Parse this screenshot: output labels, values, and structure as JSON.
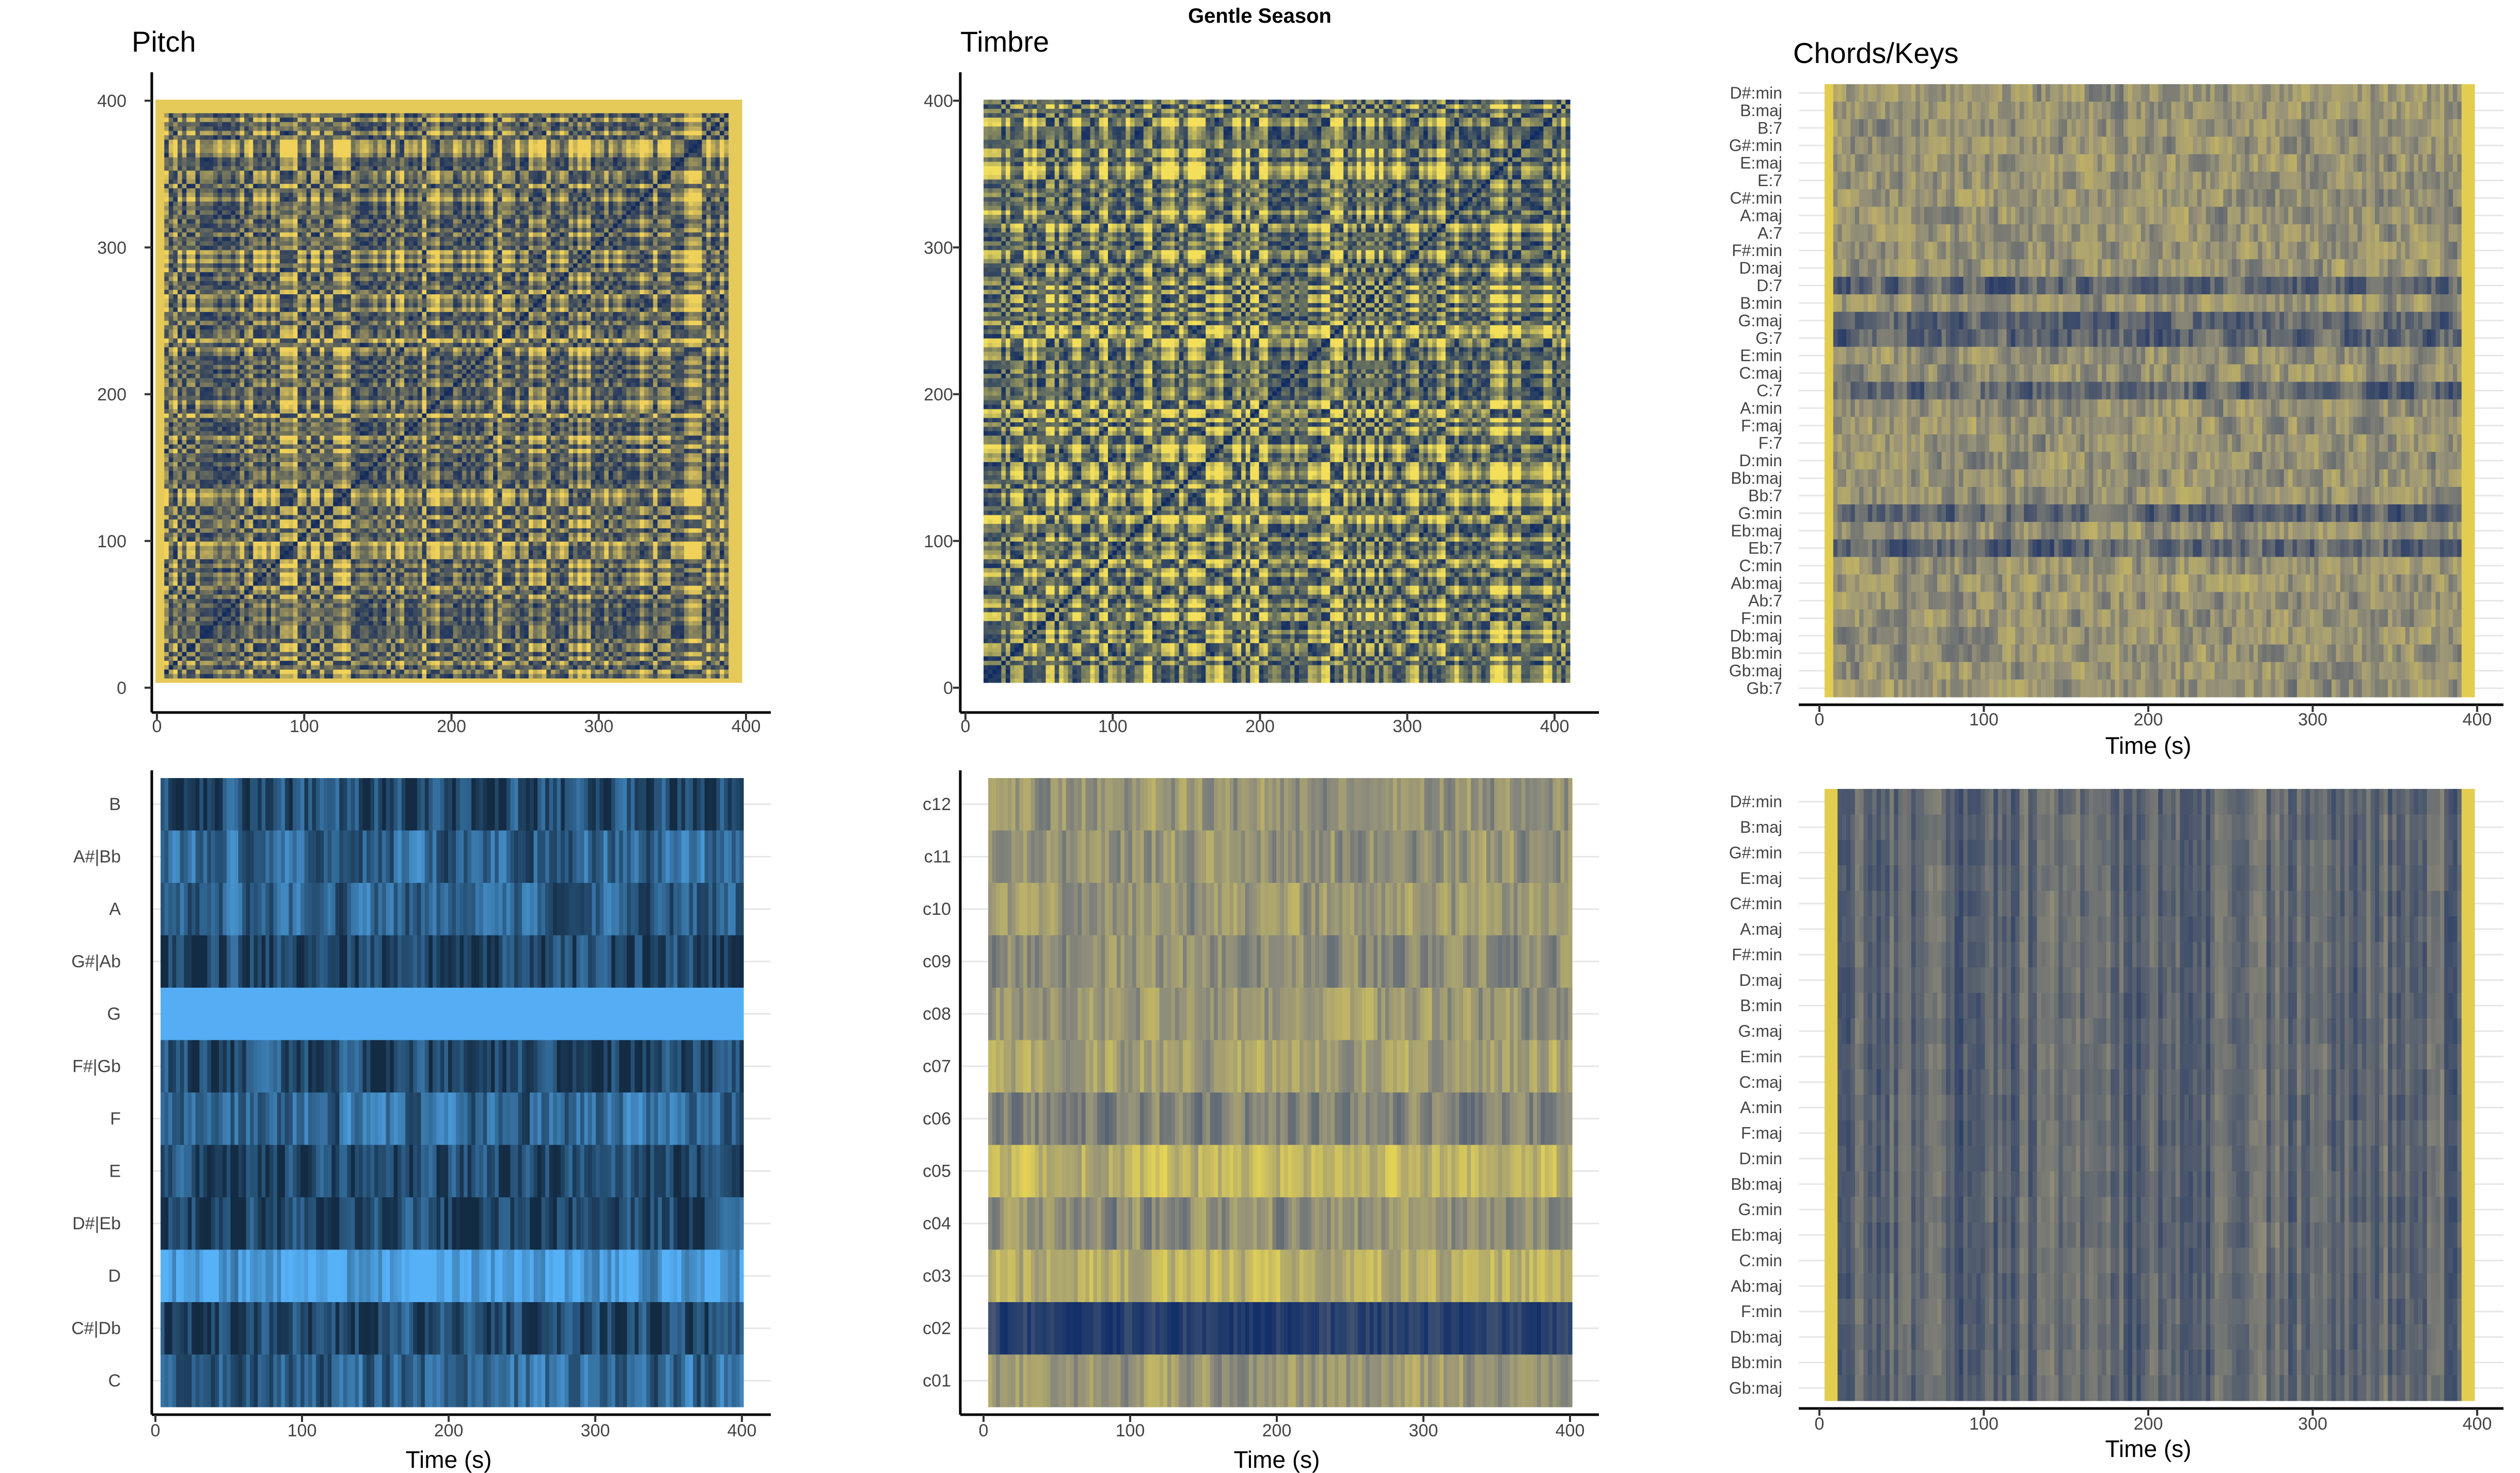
{
  "figure_title": "Gentle Season",
  "chart_data": [
    {
      "id": "pitch-ssm",
      "type": "heatmap",
      "title": "Pitch",
      "xlabel": "",
      "ylabel": "",
      "xlim": [
        0,
        400
      ],
      "ylim": [
        0,
        400
      ],
      "x_ticks": [
        0,
        100,
        200,
        300,
        400
      ],
      "y_ticks": [
        0,
        100,
        200,
        300,
        400
      ],
      "colors": [
        "#132b5e",
        "#f0d25a"
      ]
    },
    {
      "id": "timbre-ssm",
      "type": "heatmap",
      "title": "Timbre",
      "xlabel": "",
      "ylabel": "",
      "xlim": [
        0,
        400
      ],
      "ylim": [
        0,
        400
      ],
      "x_ticks": [
        0,
        100,
        200,
        300,
        400
      ],
      "y_ticks": [
        0,
        100,
        200,
        300,
        400
      ],
      "colors": [
        "#0f2b63",
        "#f3df5a"
      ]
    },
    {
      "id": "chordogram",
      "type": "heatmap",
      "title": "Chords/Keys",
      "xlabel": "Time (s)",
      "ylabel": "",
      "xlim": [
        0,
        400
      ],
      "x_ticks": [
        0,
        100,
        200,
        300,
        400
      ],
      "categories": [
        "D#:min",
        "B:maj",
        "B:7",
        "G#:min",
        "E:maj",
        "E:7",
        "C#:min",
        "A:maj",
        "A:7",
        "F#:min",
        "D:maj",
        "D:7",
        "B:min",
        "G:maj",
        "G:7",
        "E:min",
        "C:maj",
        "C:7",
        "A:min",
        "F:maj",
        "F:7",
        "D:min",
        "Bb:maj",
        "Bb:7",
        "G:min",
        "Eb:maj",
        "Eb:7",
        "C:min",
        "Ab:maj",
        "Ab:7",
        "F:min",
        "Db:maj",
        "Bb:min",
        "Gb:maj",
        "Gb:7"
      ],
      "colors": [
        "#1f3466",
        "#9a9478",
        "#f1d84a"
      ]
    },
    {
      "id": "chromagram",
      "type": "heatmap",
      "title": "",
      "xlabel": "Time (s)",
      "ylabel": "",
      "xlim": [
        0,
        400
      ],
      "x_ticks": [
        0,
        100,
        200,
        300,
        400
      ],
      "categories": [
        "B",
        "A#|Bb",
        "A",
        "G#|Ab",
        "G",
        "F#|Gb",
        "F",
        "E",
        "D#|Eb",
        "D",
        "C#|Db",
        "C"
      ],
      "colors": [
        "#132b43",
        "#56b1f7"
      ]
    },
    {
      "id": "cepstrogram",
      "type": "heatmap",
      "title": "",
      "xlabel": "Time (s)",
      "ylabel": "",
      "xlim": [
        0,
        400
      ],
      "x_ticks": [
        0,
        100,
        200,
        300,
        400
      ],
      "categories": [
        "c12",
        "c11",
        "c10",
        "c09",
        "c08",
        "c07",
        "c06",
        "c05",
        "c04",
        "c03",
        "c02",
        "c01"
      ],
      "colors": [
        "#13306a",
        "#8d8c7c",
        "#f5e04e"
      ]
    },
    {
      "id": "keygram",
      "type": "heatmap",
      "title": "",
      "xlabel": "Time (s)",
      "ylabel": "",
      "xlim": [
        0,
        400
      ],
      "x_ticks": [
        0,
        100,
        200,
        300,
        400
      ],
      "categories": [
        "D#:min",
        "B:maj",
        "G#:min",
        "E:maj",
        "C#:min",
        "A:maj",
        "F#:min",
        "D:maj",
        "B:min",
        "G:maj",
        "E:min",
        "C:maj",
        "A:min",
        "F:maj",
        "D:min",
        "Bb:maj",
        "G:min",
        "Eb:maj",
        "C:min",
        "Ab:maj",
        "F:min",
        "Db:maj",
        "Bb:min",
        "Gb:maj"
      ],
      "colors": [
        "#1a3164",
        "#8f8b78",
        "#f1d84a"
      ]
    }
  ]
}
